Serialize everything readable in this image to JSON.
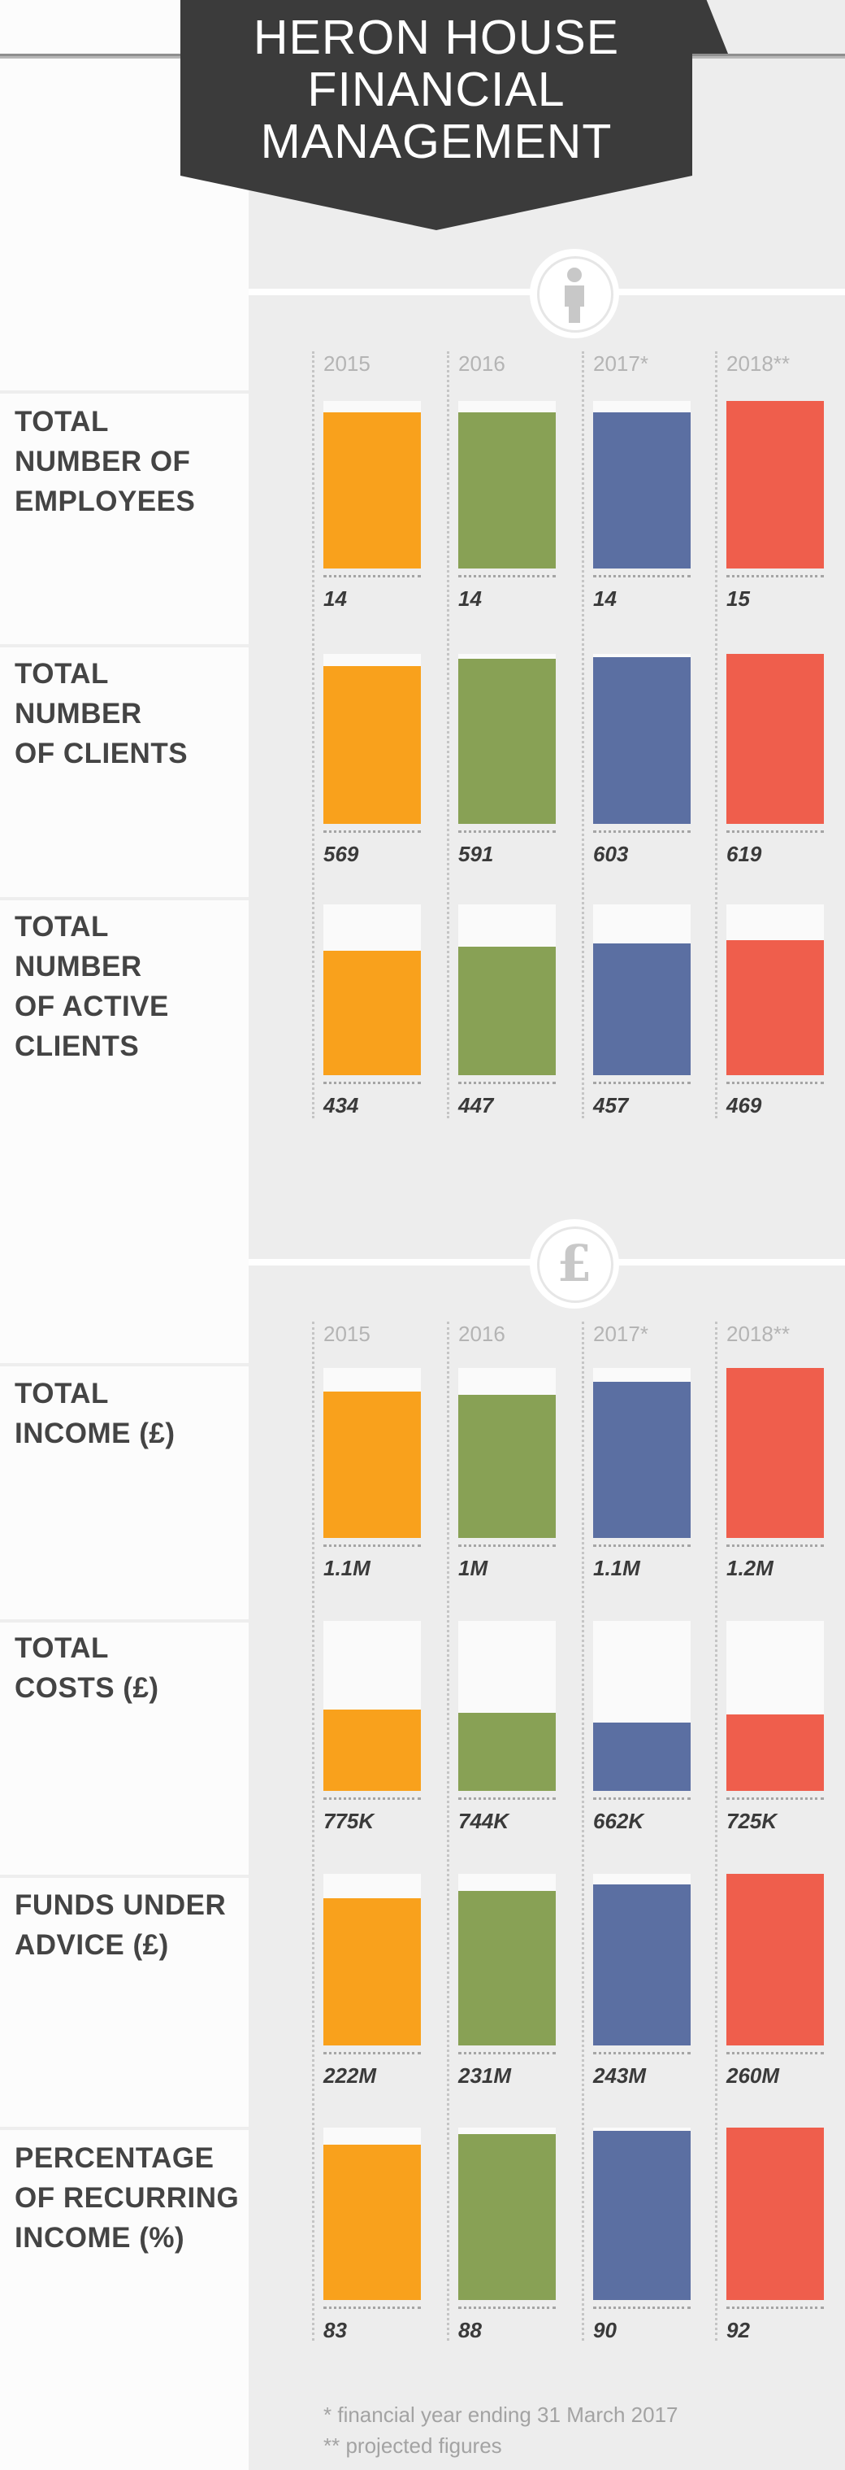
{
  "header": {
    "title_lines": [
      "HERON HOUSE",
      "FINANCIAL",
      "MANAGEMENT"
    ]
  },
  "years": [
    "2015",
    "2016",
    "2017*",
    "2018**"
  ],
  "colors": {
    "2015": "#f9a11c",
    "2016": "#88a155",
    "2017*": "#5b6fa2",
    "2018**": "#ef5e4c",
    "banner": "#3b3b3b",
    "panel": "#ededed"
  },
  "sections": [
    {
      "icon": "person-icon",
      "metrics": [
        {
          "label": "TOTAL\nNUMBER OF\nEMPLOYEES",
          "values": [
            "14",
            "14",
            "14",
            "15"
          ]
        },
        {
          "label": "TOTAL\nNUMBER\nOF CLIENTS",
          "values": [
            "569",
            "591",
            "603",
            "619"
          ]
        },
        {
          "label": "TOTAL\nNUMBER\nOF ACTIVE\nCLIENTS",
          "values": [
            "434",
            "447",
            "457",
            "469"
          ]
        }
      ]
    },
    {
      "icon": "pound-icon",
      "icon_glyph": "£",
      "metrics": [
        {
          "label": "TOTAL\nINCOME (£)",
          "values": [
            "1.1M",
            "1M",
            "1.1M",
            "1.2M"
          ]
        },
        {
          "label": "TOTAL\nCOSTS (£)",
          "values": [
            "775K",
            "744K",
            "662K",
            "725K"
          ]
        },
        {
          "label": "FUNDS UNDER\nADVICE (£)",
          "values": [
            "222M",
            "231M",
            "243M",
            "260M"
          ]
        },
        {
          "label": "PERCENTAGE\nOF RECURRING\nINCOME (%)",
          "values": [
            "83",
            "88",
            "90",
            "92"
          ]
        }
      ]
    }
  ],
  "chart_data": [
    {
      "type": "bar",
      "title": "TOTAL NUMBER OF EMPLOYEES",
      "categories": [
        "2015",
        "2016",
        "2017*",
        "2018**"
      ],
      "values": [
        14,
        14,
        14,
        15
      ]
    },
    {
      "type": "bar",
      "title": "TOTAL NUMBER OF CLIENTS",
      "categories": [
        "2015",
        "2016",
        "2017*",
        "2018**"
      ],
      "values": [
        569,
        591,
        603,
        619
      ]
    },
    {
      "type": "bar",
      "title": "TOTAL NUMBER OF ACTIVE CLIENTS",
      "categories": [
        "2015",
        "2016",
        "2017*",
        "2018**"
      ],
      "values": [
        434,
        447,
        457,
        469
      ]
    },
    {
      "type": "bar",
      "title": "TOTAL INCOME (£)",
      "categories": [
        "2015",
        "2016",
        "2017*",
        "2018**"
      ],
      "values": [
        1100000,
        1000000,
        1100000,
        1200000
      ]
    },
    {
      "type": "bar",
      "title": "TOTAL COSTS (£)",
      "categories": [
        "2015",
        "2016",
        "2017*",
        "2018**"
      ],
      "values": [
        775000,
        744000,
        662000,
        725000
      ]
    },
    {
      "type": "bar",
      "title": "FUNDS UNDER ADVICE (£)",
      "categories": [
        "2015",
        "2016",
        "2017*",
        "2018**"
      ],
      "values": [
        222000000,
        231000000,
        243000000,
        260000000
      ]
    },
    {
      "type": "bar",
      "title": "PERCENTAGE OF RECURRING INCOME (%)",
      "categories": [
        "2015",
        "2016",
        "2017*",
        "2018**"
      ],
      "values": [
        83,
        88,
        90,
        92
      ]
    }
  ],
  "bar_fill_fractions": [
    [
      0.93,
      0.93,
      0.93,
      1.0
    ],
    [
      0.93,
      0.97,
      0.98,
      1.0
    ],
    [
      0.73,
      0.75,
      0.77,
      0.79
    ],
    [
      0.86,
      0.84,
      0.92,
      1.0
    ],
    [
      0.48,
      0.46,
      0.4,
      0.45
    ],
    [
      0.86,
      0.9,
      0.94,
      1.0
    ],
    [
      0.9,
      0.96,
      0.98,
      1.0
    ]
  ],
  "footnotes": [
    "* financial year ending 31 March 2017",
    "** projected figures"
  ]
}
